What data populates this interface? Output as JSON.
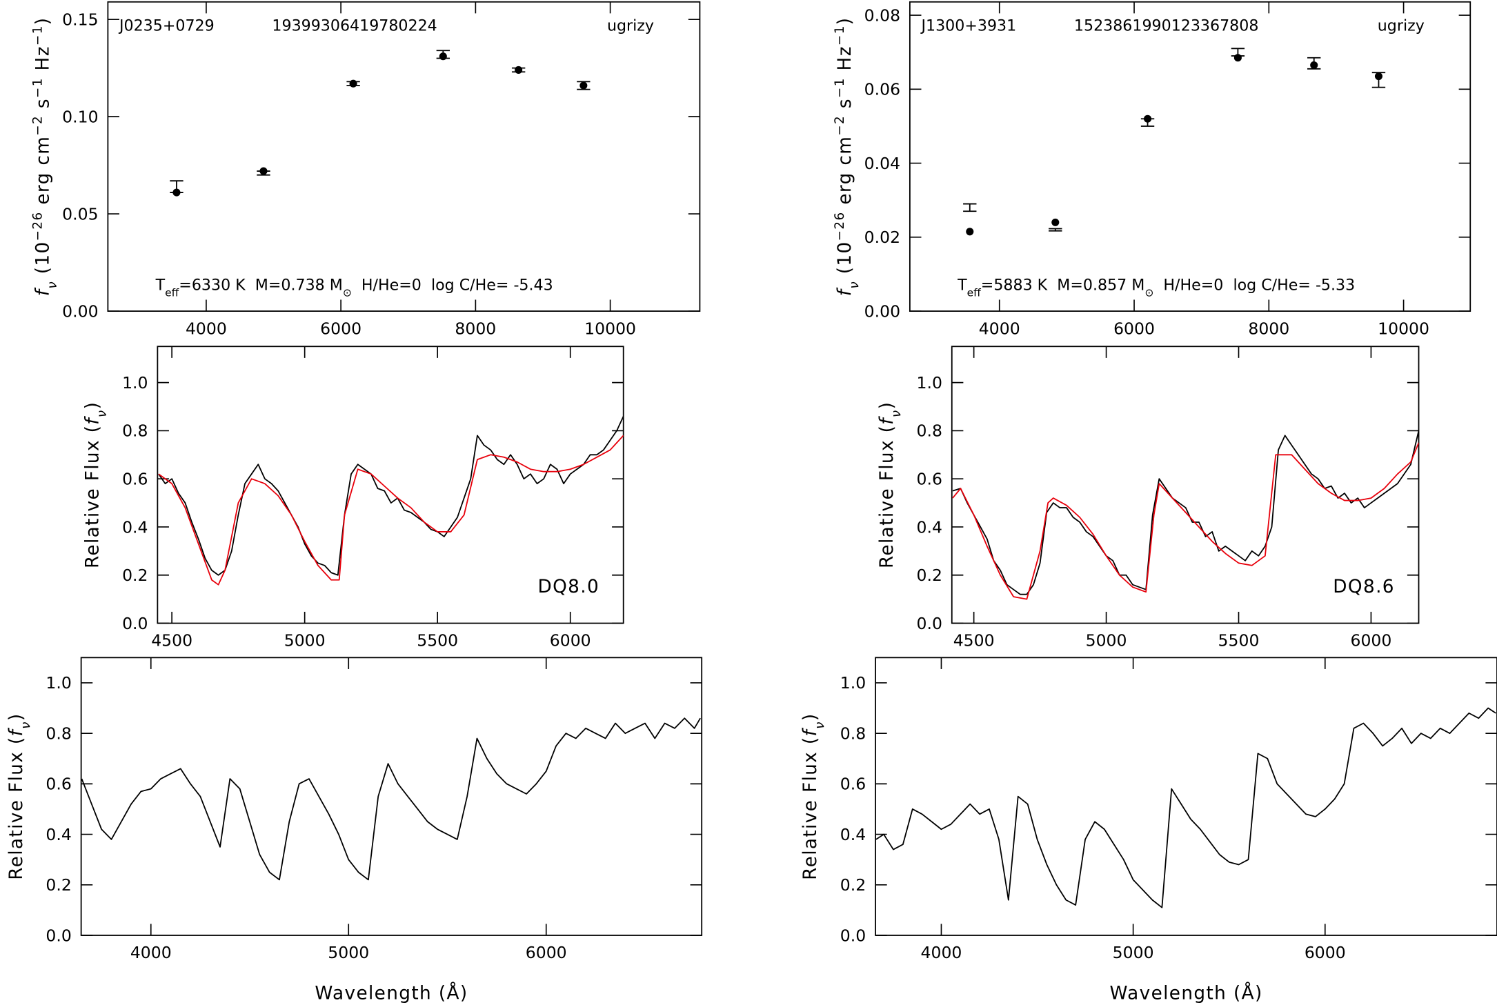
{
  "chart_data": [
    {
      "type": "scatter",
      "annotations": [
        "J0235+0729",
        "19399306419780224",
        "ugrizy"
      ],
      "params_parts": [
        "T",
        "eff",
        "=6330 K  M=0.738 M",
        "⊙",
        "  H/He=0  log C/He= -5.43"
      ],
      "ylabel_parts": [
        "f",
        "ν",
        " (10",
        "−26",
        " erg cm",
        "−2",
        " s",
        "−1",
        " Hz",
        "−1",
        ")"
      ],
      "xlim": [
        2540,
        11330
      ],
      "ylim": [
        0,
        0.159
      ],
      "xticks": [
        4000,
        6000,
        8000,
        10000
      ],
      "yticks": [
        {
          "value": 0,
          "label": "0.00"
        },
        0.05,
        {
          "value": 0.1,
          "label": "0.10"
        },
        0.15
      ],
      "series": [
        {
          "color": "#000000",
          "x": [
            3560,
            4851,
            6184,
            7518,
            8638,
            9603
          ],
          "values": [
            0.061,
            0.072,
            0.117,
            0.131,
            0.124,
            0.116
          ]
        },
        {
          "color": "#000000",
          "x": [
            3560,
            4851,
            6184,
            7518,
            8638,
            9603
          ],
          "values": [
            0.064,
            0.071,
            0.117,
            0.132,
            0.124,
            0.116
          ],
          "errors": [
            0.003,
            0.001,
            0.001,
            0.002,
            0.001,
            0.002
          ]
        }
      ]
    },
    {
      "type": "scatter",
      "annotations": [
        "J1300+3931",
        "1523861990123367808",
        "ugrizy"
      ],
      "params_parts": [
        "T",
        "eff",
        "=5883 K  M=0.857 M",
        "⊙",
        "  H/He=0  log C/He= -5.33"
      ],
      "ylabel_parts": [
        "f",
        "ν",
        " (10",
        "−26",
        " erg cm",
        "−2",
        " s",
        "−1",
        " Hz",
        "−1",
        ")"
      ],
      "xlim": [
        2670,
        10990
      ],
      "ylim": [
        0,
        0.0836
      ],
      "xticks": [
        4000,
        6000,
        8000,
        10000
      ],
      "yticks": [
        {
          "value": 0,
          "label": "0.00"
        },
        0.02,
        0.04,
        0.06,
        0.08
      ],
      "series": [
        {
          "color": "#000000",
          "x": [
            3560,
            4830,
            6200,
            7540,
            8670,
            9630
          ],
          "values": [
            0.0215,
            0.024,
            0.052,
            0.0685,
            0.0665,
            0.0635
          ]
        },
        {
          "color": "#000000",
          "x": [
            3560,
            4830,
            6200,
            7540,
            8670,
            9630
          ],
          "values": [
            0.028,
            0.022,
            0.051,
            0.07,
            0.067,
            0.0625
          ],
          "errors": [
            0.001,
            0.0003,
            0.001,
            0.001,
            0.0015,
            0.002
          ]
        }
      ]
    },
    {
      "type": "line",
      "annotations": [
        "DQ8.0"
      ],
      "ylabel_parts": [
        "Relative Flux (",
        "f",
        "ν",
        ")"
      ],
      "xlim": [
        4446,
        6200
      ],
      "ylim": [
        0,
        1.15
      ],
      "xticks": [
        4500,
        5000,
        5500,
        6000
      ],
      "yticks": [
        {
          "value": 0,
          "label": "0.0"
        },
        0.2,
        0.4,
        0.6,
        0.8,
        {
          "value": 1,
          "label": "1.0"
        }
      ],
      "series": [
        {
          "color": "#000000",
          "x": [
            4450,
            4475,
            4500,
            4525,
            4550,
            4575,
            4600,
            4625,
            4650,
            4675,
            4700,
            4725,
            4750,
            4775,
            4800,
            4825,
            4850,
            4875,
            4900,
            4925,
            4950,
            4975,
            5000,
            5025,
            5050,
            5075,
            5100,
            5125,
            5150,
            5175,
            5200,
            5225,
            5250,
            5275,
            5300,
            5325,
            5350,
            5375,
            5400,
            5425,
            5450,
            5475,
            5500,
            5525,
            5550,
            5575,
            5600,
            5625,
            5650,
            5675,
            5700,
            5725,
            5750,
            5775,
            5800,
            5825,
            5850,
            5875,
            5900,
            5925,
            5950,
            5975,
            6000,
            6025,
            6050,
            6075,
            6100,
            6125,
            6150,
            6175,
            6200
          ],
          "values": [
            0.62,
            0.58,
            0.6,
            0.54,
            0.5,
            0.42,
            0.35,
            0.27,
            0.22,
            0.2,
            0.22,
            0.3,
            0.45,
            0.58,
            0.62,
            0.66,
            0.6,
            0.58,
            0.55,
            0.5,
            0.45,
            0.4,
            0.33,
            0.28,
            0.25,
            0.24,
            0.21,
            0.2,
            0.45,
            0.62,
            0.66,
            0.64,
            0.62,
            0.56,
            0.55,
            0.5,
            0.52,
            0.47,
            0.46,
            0.44,
            0.42,
            0.39,
            0.38,
            0.36,
            0.4,
            0.44,
            0.52,
            0.6,
            0.78,
            0.74,
            0.72,
            0.68,
            0.66,
            0.7,
            0.66,
            0.6,
            0.62,
            0.58,
            0.6,
            0.66,
            0.64,
            0.58,
            0.62,
            0.64,
            0.66,
            0.7,
            0.7,
            0.72,
            0.76,
            0.8,
            0.86
          ]
        },
        {
          "color": "#e8000b",
          "x": [
            4450,
            4500,
            4550,
            4600,
            4650,
            4675,
            4700,
            4750,
            4800,
            4850,
            4900,
            4950,
            5000,
            5050,
            5100,
            5130,
            5150,
            5200,
            5250,
            5300,
            5350,
            5400,
            5450,
            5500,
            5550,
            5600,
            5650,
            5700,
            5750,
            5800,
            5850,
            5900,
            5950,
            6000,
            6050,
            6100,
            6150,
            6200
          ],
          "values": [
            0.62,
            0.58,
            0.48,
            0.33,
            0.18,
            0.16,
            0.22,
            0.5,
            0.6,
            0.58,
            0.53,
            0.45,
            0.34,
            0.24,
            0.18,
            0.18,
            0.45,
            0.64,
            0.62,
            0.57,
            0.52,
            0.48,
            0.42,
            0.38,
            0.38,
            0.45,
            0.68,
            0.7,
            0.69,
            0.67,
            0.64,
            0.63,
            0.63,
            0.64,
            0.66,
            0.69,
            0.72,
            0.78
          ]
        }
      ]
    },
    {
      "type": "line",
      "annotations": [
        "DQ8.6"
      ],
      "ylabel_parts": [
        "Relative Flux (",
        "f",
        "ν",
        ")"
      ],
      "xlim": [
        4417,
        6180
      ],
      "ylim": [
        0,
        1.15
      ],
      "xticks": [
        4500,
        5000,
        5500,
        6000
      ],
      "yticks": [
        {
          "value": 0,
          "label": "0.0"
        },
        0.2,
        0.4,
        0.6,
        0.8,
        {
          "value": 1,
          "label": "1.0"
        }
      ],
      "series": [
        {
          "color": "#000000",
          "x": [
            4420,
            4450,
            4475,
            4500,
            4525,
            4550,
            4575,
            4600,
            4625,
            4650,
            4675,
            4700,
            4725,
            4750,
            4775,
            4800,
            4825,
            4850,
            4875,
            4900,
            4925,
            4950,
            4975,
            5000,
            5025,
            5050,
            5075,
            5100,
            5125,
            5150,
            5175,
            5200,
            5225,
            5250,
            5275,
            5300,
            5325,
            5350,
            5375,
            5400,
            5425,
            5450,
            5475,
            5500,
            5525,
            5550,
            5575,
            5600,
            5625,
            5650,
            5675,
            5700,
            5725,
            5750,
            5775,
            5800,
            5825,
            5850,
            5875,
            5900,
            5925,
            5950,
            5975,
            6000,
            6025,
            6050,
            6075,
            6100,
            6125,
            6150,
            6180
          ],
          "values": [
            0.55,
            0.56,
            0.5,
            0.45,
            0.4,
            0.35,
            0.26,
            0.22,
            0.16,
            0.14,
            0.12,
            0.12,
            0.16,
            0.25,
            0.46,
            0.5,
            0.48,
            0.48,
            0.44,
            0.42,
            0.38,
            0.36,
            0.32,
            0.28,
            0.26,
            0.2,
            0.2,
            0.16,
            0.15,
            0.14,
            0.45,
            0.6,
            0.56,
            0.52,
            0.5,
            0.48,
            0.42,
            0.42,
            0.36,
            0.38,
            0.3,
            0.32,
            0.3,
            0.28,
            0.26,
            0.3,
            0.28,
            0.32,
            0.4,
            0.72,
            0.78,
            0.74,
            0.7,
            0.66,
            0.62,
            0.6,
            0.56,
            0.57,
            0.52,
            0.54,
            0.5,
            0.52,
            0.48,
            0.5,
            0.52,
            0.54,
            0.56,
            0.58,
            0.62,
            0.66,
            0.8
          ]
        },
        {
          "color": "#e8000b",
          "x": [
            4420,
            4450,
            4500,
            4550,
            4600,
            4650,
            4700,
            4750,
            4780,
            4800,
            4850,
            4900,
            4950,
            5000,
            5050,
            5100,
            5150,
            5180,
            5200,
            5250,
            5300,
            5350,
            5400,
            5450,
            5500,
            5550,
            5600,
            5640,
            5700,
            5750,
            5800,
            5850,
            5900,
            5950,
            6000,
            6050,
            6100,
            6150,
            6180
          ],
          "values": [
            0.52,
            0.56,
            0.45,
            0.32,
            0.2,
            0.11,
            0.1,
            0.3,
            0.5,
            0.52,
            0.49,
            0.44,
            0.37,
            0.28,
            0.2,
            0.15,
            0.13,
            0.45,
            0.58,
            0.52,
            0.46,
            0.4,
            0.34,
            0.29,
            0.25,
            0.24,
            0.28,
            0.7,
            0.7,
            0.64,
            0.58,
            0.54,
            0.51,
            0.51,
            0.52,
            0.56,
            0.62,
            0.67,
            0.75
          ]
        }
      ]
    },
    {
      "type": "line",
      "xlabel": "Wavelength (Å)",
      "ylabel_parts": [
        "Relative Flux (",
        "f",
        "ν",
        ")"
      ],
      "xlim": [
        3647,
        6787
      ],
      "ylim": [
        0,
        1.1
      ],
      "xticks": [
        4000,
        5000,
        6000
      ],
      "yticks": [
        {
          "value": 0,
          "label": "0.0"
        },
        0.2,
        0.4,
        0.6,
        0.8,
        {
          "value": 1,
          "label": "1.0"
        }
      ],
      "series": [
        {
          "color": "#000000",
          "x": [
            3650,
            3700,
            3750,
            3800,
            3850,
            3900,
            3950,
            4000,
            4050,
            4100,
            4150,
            4200,
            4250,
            4300,
            4350,
            4400,
            4450,
            4500,
            4550,
            4600,
            4650,
            4700,
            4750,
            4800,
            4850,
            4900,
            4950,
            5000,
            5050,
            5100,
            5150,
            5200,
            5250,
            5300,
            5350,
            5400,
            5450,
            5500,
            5550,
            5600,
            5650,
            5700,
            5750,
            5800,
            5850,
            5900,
            5950,
            6000,
            6050,
            6100,
            6150,
            6200,
            6250,
            6300,
            6350,
            6400,
            6450,
            6500,
            6550,
            6600,
            6650,
            6700,
            6750,
            6780
          ],
          "values": [
            0.62,
            0.52,
            0.42,
            0.38,
            0.45,
            0.52,
            0.57,
            0.58,
            0.62,
            0.64,
            0.66,
            0.6,
            0.55,
            0.45,
            0.35,
            0.62,
            0.58,
            0.45,
            0.32,
            0.25,
            0.22,
            0.45,
            0.6,
            0.62,
            0.55,
            0.48,
            0.4,
            0.3,
            0.25,
            0.22,
            0.55,
            0.68,
            0.6,
            0.55,
            0.5,
            0.45,
            0.42,
            0.4,
            0.38,
            0.55,
            0.78,
            0.7,
            0.64,
            0.6,
            0.58,
            0.56,
            0.6,
            0.65,
            0.75,
            0.8,
            0.78,
            0.82,
            0.8,
            0.78,
            0.84,
            0.8,
            0.82,
            0.84,
            0.78,
            0.84,
            0.82,
            0.86,
            0.82,
            0.86
          ]
        }
      ]
    },
    {
      "type": "line",
      "xlabel": "Wavelength (Å)",
      "ylabel_parts": [
        "Relative Flux (",
        "f",
        "ν",
        ")"
      ],
      "xlim": [
        3657,
        6896
      ],
      "ylim": [
        0,
        1.1
      ],
      "xticks": [
        4000,
        5000,
        6000
      ],
      "yticks": [
        {
          "value": 0,
          "label": "0.0"
        },
        0.2,
        0.4,
        0.6,
        0.8,
        {
          "value": 1,
          "label": "1.0"
        }
      ],
      "series": [
        {
          "color": "#000000",
          "x": [
            3660,
            3700,
            3750,
            3800,
            3850,
            3900,
            3950,
            4000,
            4050,
            4100,
            4150,
            4200,
            4250,
            4300,
            4350,
            4400,
            4450,
            4500,
            4550,
            4600,
            4650,
            4700,
            4750,
            4800,
            4850,
            4900,
            4950,
            5000,
            5050,
            5100,
            5150,
            5200,
            5250,
            5300,
            5350,
            5400,
            5450,
            5500,
            5550,
            5600,
            5650,
            5700,
            5750,
            5800,
            5850,
            5900,
            5950,
            6000,
            6050,
            6100,
            6150,
            6200,
            6250,
            6300,
            6350,
            6400,
            6450,
            6500,
            6550,
            6600,
            6650,
            6700,
            6750,
            6800,
            6850,
            6890
          ],
          "values": [
            0.38,
            0.4,
            0.34,
            0.36,
            0.5,
            0.48,
            0.45,
            0.42,
            0.44,
            0.48,
            0.52,
            0.48,
            0.5,
            0.38,
            0.14,
            0.55,
            0.52,
            0.38,
            0.28,
            0.2,
            0.14,
            0.12,
            0.38,
            0.45,
            0.42,
            0.36,
            0.3,
            0.22,
            0.18,
            0.14,
            0.11,
            0.58,
            0.52,
            0.46,
            0.42,
            0.37,
            0.32,
            0.29,
            0.28,
            0.3,
            0.72,
            0.7,
            0.6,
            0.56,
            0.52,
            0.48,
            0.47,
            0.5,
            0.54,
            0.6,
            0.82,
            0.84,
            0.8,
            0.75,
            0.78,
            0.82,
            0.76,
            0.8,
            0.78,
            0.82,
            0.8,
            0.84,
            0.88,
            0.86,
            0.9,
            0.88
          ]
        }
      ]
    }
  ]
}
